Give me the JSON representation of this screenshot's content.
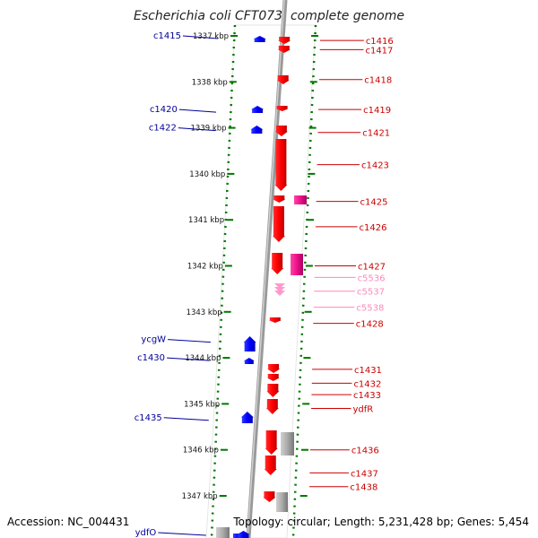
{
  "title": "Escherichia coli CFT073, complete genome",
  "accession": "Accession: NC_004431",
  "topology": "Topology: circular; Length: 5,231,428 bp; Genes: 5,454",
  "ticks": [
    {
      "label": "1337 kbp",
      "kbp": 1337
    },
    {
      "label": "1338 kbp",
      "kbp": 1338
    },
    {
      "label": "1339 kbp",
      "kbp": 1339
    },
    {
      "label": "1340 kbp",
      "kbp": 1340
    },
    {
      "label": "1341 kbp",
      "kbp": 1341
    },
    {
      "label": "1342 kbp",
      "kbp": 1342
    },
    {
      "label": "1343 kbp",
      "kbp": 1343
    },
    {
      "label": "1344 kbp",
      "kbp": 1344
    },
    {
      "label": "1345 kbp",
      "kbp": 1345
    },
    {
      "label": "1346 kbp",
      "kbp": 1346
    },
    {
      "label": "1347 kbp",
      "kbp": 1347
    }
  ],
  "reverse_genes": [
    {
      "label": "c1415",
      "kbp": 1337.0
    },
    {
      "label": "c1420",
      "kbp": 1338.6
    },
    {
      "label": "c1422",
      "kbp": 1339.0
    },
    {
      "label": "ycgW",
      "kbp": 1343.6
    },
    {
      "label": "c1430",
      "kbp": 1344.0
    },
    {
      "label": "c1435",
      "kbp": 1345.3
    },
    {
      "label": "ydfO",
      "kbp": 1347.8
    }
  ],
  "forward_genes": [
    {
      "label": "c1416",
      "kbp": 1337.1,
      "type": "cds"
    },
    {
      "label": "c1417",
      "kbp": 1337.3,
      "type": "cds"
    },
    {
      "label": "c1418",
      "kbp": 1337.95,
      "type": "cds"
    },
    {
      "label": "c1419",
      "kbp": 1338.6,
      "type": "cds"
    },
    {
      "label": "c1421",
      "kbp": 1339.1,
      "type": "cds"
    },
    {
      "label": "c1423",
      "kbp": 1339.8,
      "type": "cds"
    },
    {
      "label": "c1425",
      "kbp": 1340.6,
      "type": "cds"
    },
    {
      "label": "c1426",
      "kbp": 1341.15,
      "type": "cds"
    },
    {
      "label": "c1427",
      "kbp": 1342.0,
      "type": "cds"
    },
    {
      "label": "c5536",
      "kbp": 1342.25,
      "type": "pseudo"
    },
    {
      "label": "c5537",
      "kbp": 1342.55,
      "type": "pseudo"
    },
    {
      "label": "c5538",
      "kbp": 1342.9,
      "type": "pseudo"
    },
    {
      "label": "c1428",
      "kbp": 1343.25,
      "type": "cds"
    },
    {
      "label": "c1431",
      "kbp": 1344.25,
      "type": "cds"
    },
    {
      "label": "c1432",
      "kbp": 1344.55,
      "type": "cds"
    },
    {
      "label": "c1433",
      "kbp": 1344.8,
      "type": "cds"
    },
    {
      "label": "ydfR",
      "kbp": 1345.1,
      "type": "cds"
    },
    {
      "label": "c1436",
      "kbp": 1346.0,
      "type": "cds"
    },
    {
      "label": "c1437",
      "kbp": 1346.5,
      "type": "cds"
    },
    {
      "label": "c1438",
      "kbp": 1346.8,
      "type": "cds"
    }
  ],
  "colors": {
    "cds_forward": "#ff0000",
    "cds_reverse": "#0000ff",
    "pseudo": "#ff99cc",
    "rna": "#ee1188",
    "other": "#aaaaaa",
    "backbone": "#888888",
    "ticks": "#007700",
    "forward_label": "#cc0000",
    "reverse_label": "#000099",
    "pseudo_label": "#ff88bb"
  }
}
